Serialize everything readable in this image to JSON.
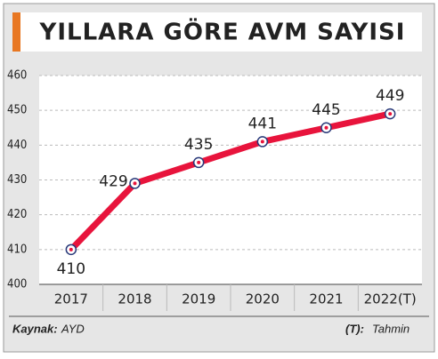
{
  "chart_data": {
    "type": "line",
    "title": "YILLARA GÖRE AVM SAYISI",
    "categories": [
      "2017",
      "2018",
      "2019",
      "2020",
      "2021",
      "2022(T)"
    ],
    "values": [
      410,
      429,
      435,
      441,
      445,
      449
    ],
    "color": "#e8143c",
    "ylim": [
      400,
      460
    ],
    "yticks": [
      400,
      410,
      420,
      430,
      440,
      450,
      460
    ],
    "grid": true,
    "source_label": "Kaynak:",
    "source": "AYD",
    "note_label": "(T):",
    "note": "Tahmin"
  }
}
